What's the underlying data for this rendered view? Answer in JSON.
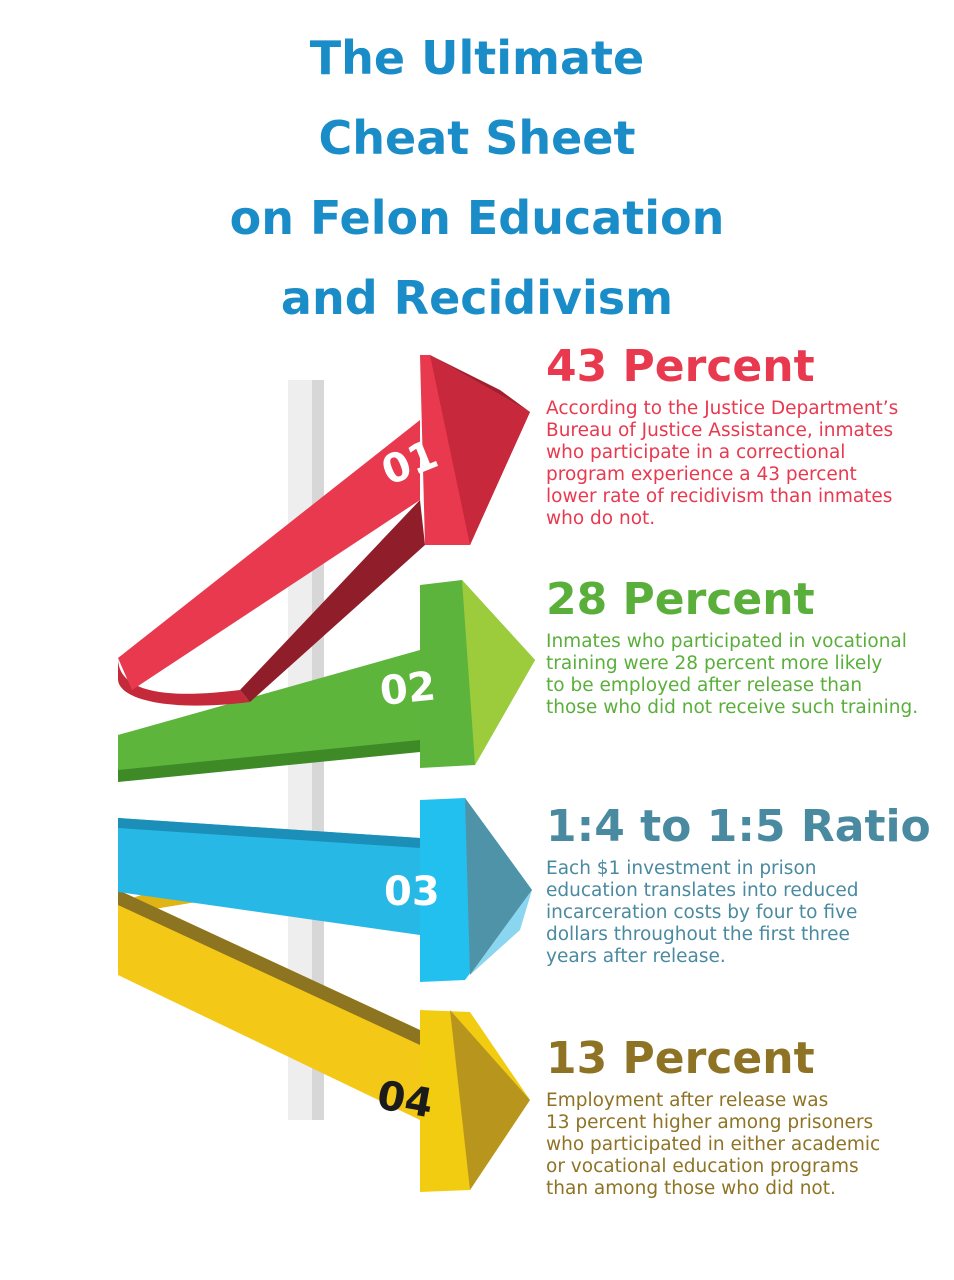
{
  "title": {
    "lines": [
      "The Ultimate",
      "Cheat Sheet",
      "on Felon Education",
      "and Recidivism"
    ],
    "color": "#1a8cc7"
  },
  "items": [
    {
      "number": "01",
      "heading": "43 Percent",
      "color": "#e8394f",
      "lines": [
        "According to the Justice Department’s",
        "Bureau of Justice Assistance, inmates",
        "who participate in a correctional",
        "program experience a 43 percent",
        "lower rate of recidivism than inmates",
        "who do not."
      ]
    },
    {
      "number": "02",
      "heading": "28 Percent",
      "color": "#5aaf3b",
      "lines": [
        "Inmates who participated in vocational",
        "training were 28 percent more likely",
        "to be employed after release than",
        "those who did not receive such training."
      ]
    },
    {
      "number": "03",
      "heading": "1:4 to 1:5 Ratio",
      "color": "#4a8aa0",
      "lines": [
        "Each $1 investment in prison",
        "education translates into reduced",
        "incarceration costs by four to five",
        "dollars throughout the first three",
        "years after release."
      ]
    },
    {
      "number": "04",
      "heading": "13 Percent",
      "color": "#8f7325",
      "lines": [
        "Employment after release was",
        "13 percent higher among prisoners",
        "who participated in either academic",
        "or vocational education programs",
        "than among those who did not."
      ]
    }
  ]
}
